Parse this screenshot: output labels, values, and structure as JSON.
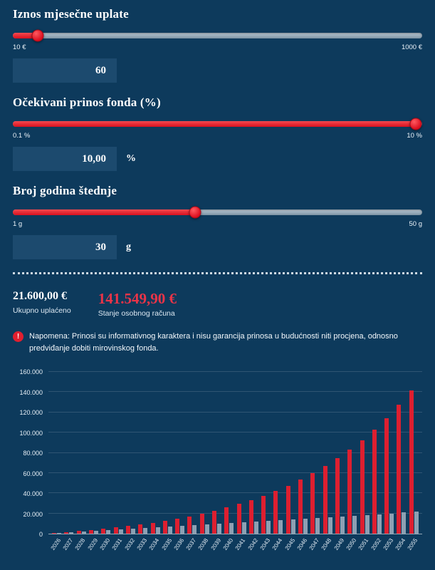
{
  "colors": {
    "background": "#0d3a5c",
    "panel": "#1c4a6e",
    "accent_red": "#e01f2f",
    "balance_red": "#ea3448",
    "bar_red": "#dd1f30",
    "bar_gray": "#8da0b3"
  },
  "sliders": [
    {
      "title": "Iznos mjesečne uplate",
      "min_label": "10 €",
      "max_label": "1000 €",
      "value": "60",
      "suffix": "",
      "percent": 6
    },
    {
      "title": "Očekivani prinos fonda (%)",
      "min_label": "0.1 %",
      "max_label": "10 %",
      "value": "10,00",
      "suffix": "%",
      "percent": 98.5
    },
    {
      "title": "Broj godina štednje",
      "min_label": "1 g",
      "max_label": "50 g",
      "value": "30",
      "suffix": "g",
      "percent": 44.5
    }
  ],
  "results": {
    "total_paid": "21.600,00 €",
    "total_paid_label": "Ukupno uplaćeno",
    "balance": "141.549,90 €",
    "balance_label": "Stanje osobnog računa"
  },
  "note": {
    "icon_glyph": "!",
    "text": "Napomena: Prinosi su informativnog karaktera i nisu garancija prinosa u budućnosti niti procjena, odnosno predviđanje dobiti mirovinskog fonda."
  },
  "chart_data": {
    "type": "bar",
    "title": "",
    "xlabel": "",
    "ylabel": "",
    "ylim": [
      0,
      160000
    ],
    "grid": true,
    "legend": false,
    "yticks": [
      0,
      20000,
      40000,
      60000,
      80000,
      100000,
      120000,
      140000,
      160000
    ],
    "ytick_labels": [
      "0",
      "20.000",
      "40.000",
      "60.000",
      "80.000",
      "100.000",
      "120.000",
      "140.000",
      "160.000"
    ],
    "categories": [
      "2026",
      "2027",
      "2028",
      "2029",
      "2030",
      "2031",
      "2032",
      "2033",
      "2034",
      "2035",
      "2036",
      "2037",
      "2038",
      "2039",
      "2040",
      "2041",
      "2042",
      "2043",
      "2044",
      "2045",
      "2046",
      "2047",
      "2048",
      "2049",
      "2050",
      "2051",
      "2052",
      "2053",
      "2054",
      "2055"
    ],
    "series": [
      {
        "name": "Stanje osobnog računa",
        "color": "#dd1f30",
        "values": [
          790,
          1660,
          2620,
          3680,
          4850,
          6140,
          7570,
          9150,
          10900,
          12830,
          14950,
          17310,
          19910,
          22780,
          25950,
          29450,
          33320,
          37600,
          42320,
          47540,
          53300,
          59670,
          66700,
          74470,
          83060,
          92540,
          103010,
          114580,
          127370,
          141550
        ]
      },
      {
        "name": "Ukupno uplaćeno",
        "color": "#8da0b3",
        "values": [
          720,
          1440,
          2160,
          2880,
          3600,
          4320,
          5040,
          5760,
          6480,
          7200,
          7920,
          8640,
          9360,
          10080,
          10800,
          11520,
          12240,
          12960,
          13680,
          14400,
          15120,
          15840,
          16560,
          17280,
          18000,
          18720,
          19440,
          20160,
          20880,
          21600
        ]
      }
    ]
  }
}
